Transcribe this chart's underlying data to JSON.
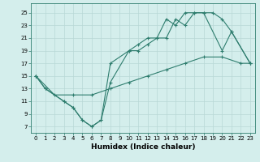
{
  "line1_x": [
    0,
    1,
    3,
    4,
    5,
    6,
    7,
    8,
    10,
    11,
    12,
    13,
    14,
    15,
    16,
    17,
    18,
    20,
    21,
    23
  ],
  "line1_y": [
    15,
    13,
    11,
    10,
    8,
    7,
    8,
    14,
    19,
    20,
    21,
    21,
    24,
    23,
    25,
    25,
    25,
    19,
    22,
    17
  ],
  "line2_x": [
    0,
    2,
    4,
    6,
    8,
    10,
    12,
    14,
    16,
    18,
    20,
    22,
    23
  ],
  "line2_y": [
    15,
    12,
    12,
    12,
    13,
    14,
    15,
    16,
    17,
    18,
    18,
    17,
    17
  ],
  "line3_x": [
    0,
    1,
    3,
    4,
    5,
    6,
    7,
    8,
    10,
    11,
    12,
    13,
    14,
    15,
    16,
    17,
    18,
    19,
    20,
    21,
    23
  ],
  "line3_y": [
    15,
    13,
    11,
    10,
    8,
    7,
    8,
    17,
    19,
    19,
    20,
    21,
    21,
    24,
    23,
    25,
    25,
    25,
    24,
    22,
    17
  ],
  "color": "#2e7d6e",
  "bg_color": "#d4eeec",
  "grid_color": "#b8d8d6",
  "xlabel": "Humidex (Indice chaleur)",
  "xlim": [
    -0.5,
    23.5
  ],
  "ylim": [
    6,
    26.5
  ],
  "xticks": [
    0,
    1,
    2,
    3,
    4,
    5,
    6,
    7,
    8,
    9,
    10,
    11,
    12,
    13,
    14,
    15,
    16,
    17,
    18,
    19,
    20,
    21,
    22,
    23
  ],
  "yticks": [
    7,
    9,
    11,
    13,
    15,
    17,
    19,
    21,
    23,
    25
  ],
  "label_fontsize": 6.5,
  "tick_fontsize": 5.0
}
